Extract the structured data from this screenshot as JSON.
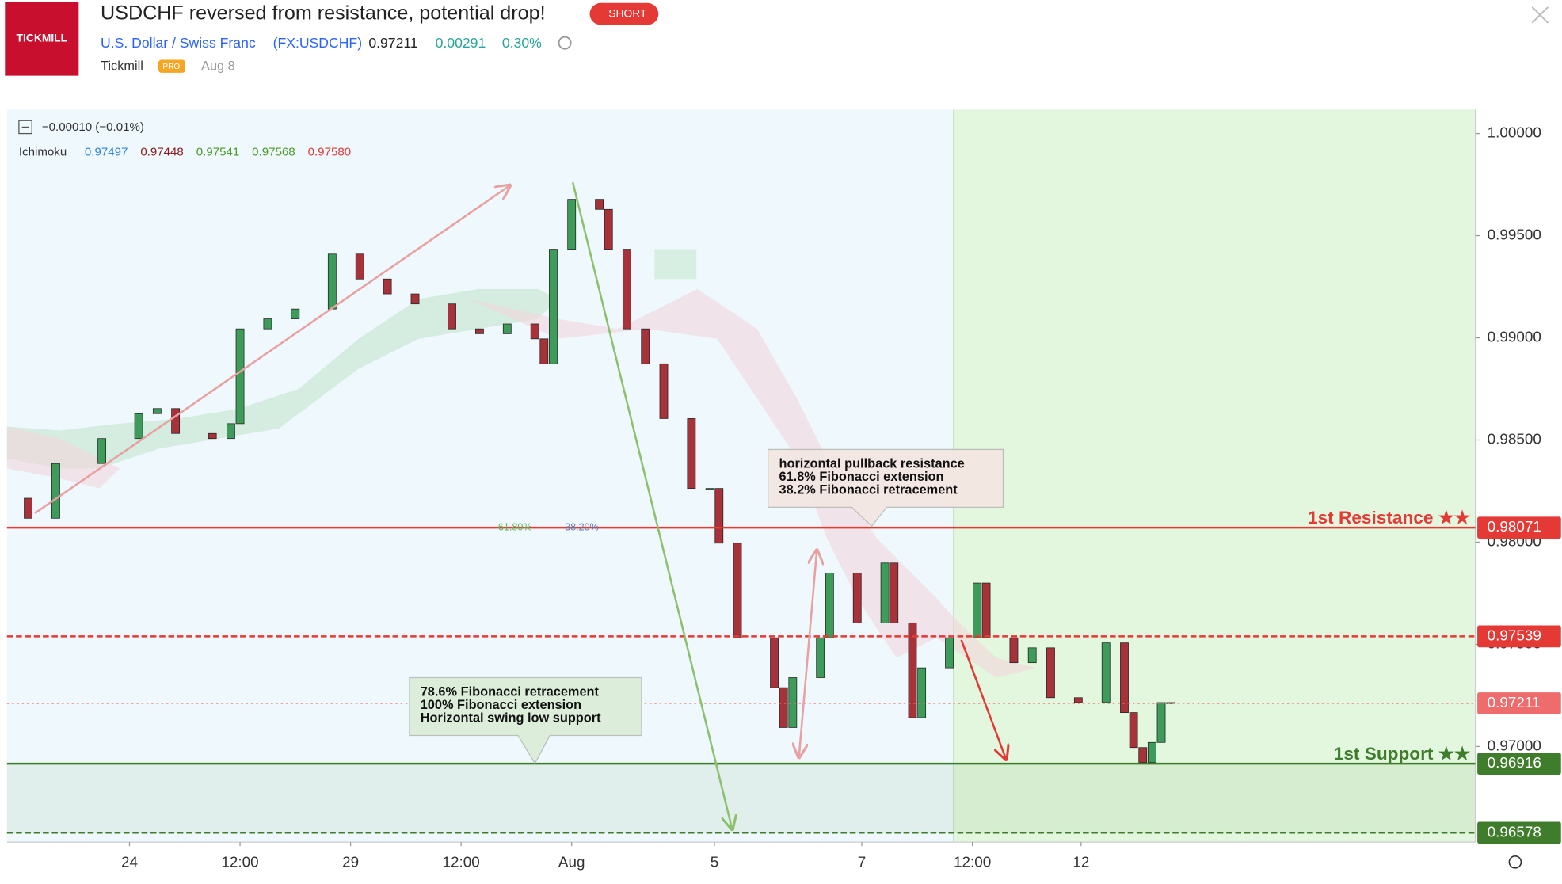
{
  "header": {
    "logo": "TICKMILL",
    "title": "USDCHF reversed from resistance, potential drop!",
    "badge": "SHORT",
    "symbol_name": "U.S. Dollar / Swiss Franc",
    "symbol": "(FX:USDCHF)",
    "price": "0.97211",
    "change": "0.00291",
    "change_pct": "0.30%",
    "author": "Tickmill",
    "author_badge": "PRO",
    "date": "Aug 8"
  },
  "legend": {
    "change_line": "−0.00010 (−0.01%)",
    "indicator": "Ichimoku",
    "values": [
      {
        "text": "0.97497",
        "color": "#2e86de"
      },
      {
        "text": "0.97448",
        "color": "#8b1a1a"
      },
      {
        "text": "0.97541",
        "color": "#4c9a2a"
      },
      {
        "text": "0.97568",
        "color": "#4c9a2a"
      },
      {
        "text": "0.97580",
        "color": "#e53935"
      }
    ]
  },
  "chart_data": {
    "type": "candlestick",
    "x": [
      -13,
      -11,
      -8,
      -3,
      1,
      3,
      5,
      9,
      11,
      12,
      15,
      18,
      22,
      25,
      28,
      31,
      35,
      38,
      41,
      44,
      45,
      46,
      48,
      51,
      52,
      54,
      56,
      58,
      61,
      63,
      64,
      66,
      70,
      71,
      72,
      75,
      76,
      79,
      82,
      83,
      85,
      86,
      89,
      92,
      93,
      96,
      98,
      100,
      103,
      106,
      108,
      109,
      110,
      111,
      112,
      113
    ],
    "values": [
      0.98215,
      0.98117,
      0.98385,
      0.98507,
      0.98629,
      0.98654,
      0.98532,
      0.98507,
      0.9858,
      0.99044,
      0.99093,
      0.99141,
      0.9941,
      0.99288,
      0.99215,
      0.99166,
      0.99044,
      0.9902,
      0.99068,
      0.98995,
      0.98873,
      0.99434,
      0.99678,
      0.99629,
      0.99434,
      0.99044,
      0.98873,
      0.98605,
      0.98263,
      0.98263,
      0.97995,
      0.97532,
      0.97288,
      0.97093,
      0.97337,
      0.97532,
      0.97849,
      0.97605,
      0.97898,
      0.97605,
      0.97141,
      0.97385,
      0.97532,
      0.978,
      0.97532,
      0.9741,
      0.97483,
      0.97239,
      0.97215,
      0.97507,
      0.97166,
      0.96995,
      0.96922,
      0.9702,
      0.97215,
      0.97211
    ],
    "up_color": "#3e9c5a",
    "down_color": "#a8323a",
    "xlim": [
      -13.3,
      146.1
    ],
    "xticks": [
      {
        "value": 0,
        "label": "24"
      },
      {
        "value": 12,
        "label": "12:00"
      },
      {
        "value": 24,
        "label": "29"
      },
      {
        "value": 36,
        "label": "12:00"
      },
      {
        "value": 48,
        "label": "Aug"
      },
      {
        "value": 63.5,
        "label": "5"
      },
      {
        "value": 79.5,
        "label": "7"
      },
      {
        "value": 91.5,
        "label": "12:00"
      },
      {
        "value": 103.3,
        "label": "12"
      }
    ],
    "ylim": [
      0.96532,
      1.00117
    ],
    "yticks": [
      {
        "value": 0.97,
        "label": "0.97000"
      },
      {
        "value": 0.975,
        "label": "0.97500"
      },
      {
        "value": 0.98,
        "label": "0.98000"
      },
      {
        "value": 0.985,
        "label": "0.98500"
      },
      {
        "value": 0.99,
        "label": "0.99000"
      },
      {
        "value": 0.995,
        "label": "0.99500"
      },
      {
        "value": 1,
        "label": "1.00000"
      }
    ],
    "forecast_start": 89.5,
    "levels": [
      {
        "label": "1st Resistance ★★",
        "value": 0.98071,
        "color": "#e53935",
        "style": "solid"
      },
      {
        "value": 0.97539,
        "color": "#e53935",
        "style": "dashed"
      },
      {
        "value": 0.97211,
        "color": "#ef6c6c",
        "style": "dotted"
      },
      {
        "label": "1st Support ★★",
        "value": 0.96916,
        "color": "#3f7d2c",
        "style": "solid"
      },
      {
        "value": 0.96578,
        "color": "#3f7d2c",
        "style": "dashed"
      }
    ],
    "callouts": [
      {
        "lines": [
          "horizontal pullback resistance",
          "61.8% Fibonacci extension",
          "38.2% Fibonacci retracement"
        ],
        "color": "#f3e7e2"
      },
      {
        "lines": [
          "78.6% Fibonacci retracement",
          "100% Fibonacci extension",
          "Horizontal swing low support"
        ],
        "color": "#dcedd9"
      }
    ],
    "fib_labels": [
      {
        "text": "61.80%",
        "color": "#5cb85c"
      },
      {
        "text": "38.20%",
        "color": "#5b7fb5"
      }
    ]
  }
}
